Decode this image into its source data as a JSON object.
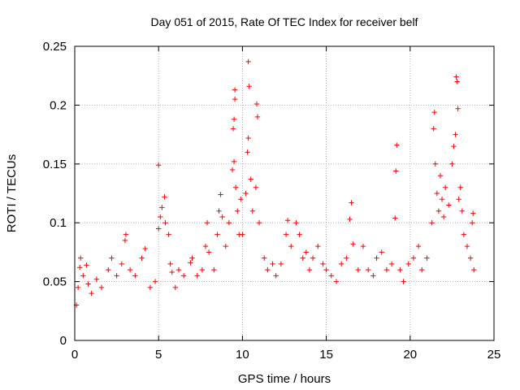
{
  "chart_data": {
    "type": "scatter",
    "title": "Day 051 of 2015, Rate Of TEC Index for receiver belf",
    "xlabel": "GPS time / hours",
    "ylabel": "ROTI / TECUs",
    "xlim": [
      0,
      25
    ],
    "ylim": [
      0,
      0.25
    ],
    "x_ticks": [
      0,
      5,
      10,
      15,
      20,
      25
    ],
    "x_tick_labels": [
      "0",
      "5",
      "10",
      "15",
      "20",
      "25"
    ],
    "y_ticks": [
      0,
      0.05,
      0.1,
      0.15,
      0.2,
      0.25
    ],
    "y_tick_labels": [
      "0",
      "0.05",
      "0.1",
      "0.15",
      "0.2",
      "0.25"
    ],
    "grid": true,
    "marker": "plus",
    "color": "#ff0000",
    "series": [
      {
        "points": [
          [
            0.1,
            0.03
          ],
          [
            0.2,
            0.045
          ],
          [
            0.3,
            0.062
          ],
          [
            0.35,
            0.07
          ],
          [
            0.5,
            0.055
          ],
          [
            0.7,
            0.064
          ],
          [
            0.8,
            0.048
          ],
          [
            1.0,
            0.04
          ],
          [
            1.3,
            0.052
          ],
          [
            1.6,
            0.045
          ],
          [
            2.0,
            0.06
          ],
          [
            2.2,
            0.07
          ],
          [
            2.5,
            0.055
          ],
          [
            2.8,
            0.065
          ],
          [
            3.0,
            0.085
          ],
          [
            3.05,
            0.09
          ],
          [
            3.3,
            0.06
          ],
          [
            3.6,
            0.055
          ],
          [
            4.0,
            0.07
          ],
          [
            4.2,
            0.078
          ],
          [
            4.5,
            0.045
          ],
          [
            4.8,
            0.05
          ],
          [
            5.0,
            0.149
          ],
          [
            5.0,
            0.095
          ],
          [
            5.1,
            0.105
          ],
          [
            5.2,
            0.113
          ],
          [
            5.35,
            0.122
          ],
          [
            5.4,
            0.1
          ],
          [
            5.6,
            0.09
          ],
          [
            5.7,
            0.065
          ],
          [
            5.8,
            0.058
          ],
          [
            6.0,
            0.045
          ],
          [
            6.2,
            0.06
          ],
          [
            6.5,
            0.055
          ],
          [
            6.9,
            0.066
          ],
          [
            7.0,
            0.07
          ],
          [
            7.3,
            0.055
          ],
          [
            7.6,
            0.06
          ],
          [
            7.8,
            0.08
          ],
          [
            7.9,
            0.1
          ],
          [
            8.0,
            0.075
          ],
          [
            8.3,
            0.06
          ],
          [
            8.5,
            0.09
          ],
          [
            8.6,
            0.11
          ],
          [
            8.7,
            0.124
          ],
          [
            8.8,
            0.105
          ],
          [
            9.0,
            0.08
          ],
          [
            9.2,
            0.1
          ],
          [
            9.4,
            0.145
          ],
          [
            9.5,
            0.152
          ],
          [
            9.45,
            0.18
          ],
          [
            9.5,
            0.188
          ],
          [
            9.55,
            0.205
          ],
          [
            9.55,
            0.213
          ],
          [
            9.6,
            0.13
          ],
          [
            9.7,
            0.11
          ],
          [
            9.8,
            0.09
          ],
          [
            9.9,
            0.12
          ],
          [
            10.0,
            0.09
          ],
          [
            10.2,
            0.125
          ],
          [
            10.3,
            0.16
          ],
          [
            10.35,
            0.172
          ],
          [
            10.4,
            0.216
          ],
          [
            10.35,
            0.237
          ],
          [
            10.5,
            0.137
          ],
          [
            10.6,
            0.11
          ],
          [
            10.8,
            0.13
          ],
          [
            10.85,
            0.201
          ],
          [
            10.9,
            0.19
          ],
          [
            11.0,
            0.1
          ],
          [
            11.3,
            0.07
          ],
          [
            11.5,
            0.06
          ],
          [
            11.8,
            0.065
          ],
          [
            12.0,
            0.055
          ],
          [
            12.3,
            0.065
          ],
          [
            12.6,
            0.09
          ],
          [
            12.7,
            0.102
          ],
          [
            12.9,
            0.08
          ],
          [
            13.2,
            0.1
          ],
          [
            13.4,
            0.09
          ],
          [
            13.6,
            0.07
          ],
          [
            13.8,
            0.075
          ],
          [
            14.0,
            0.06
          ],
          [
            14.2,
            0.07
          ],
          [
            14.5,
            0.08
          ],
          [
            14.8,
            0.065
          ],
          [
            15.0,
            0.06
          ],
          [
            15.3,
            0.055
          ],
          [
            15.6,
            0.05
          ],
          [
            15.9,
            0.065
          ],
          [
            16.2,
            0.07
          ],
          [
            16.4,
            0.103
          ],
          [
            16.5,
            0.117
          ],
          [
            16.6,
            0.082
          ],
          [
            16.9,
            0.06
          ],
          [
            17.2,
            0.08
          ],
          [
            17.5,
            0.06
          ],
          [
            17.8,
            0.055
          ],
          [
            18.0,
            0.07
          ],
          [
            18.3,
            0.075
          ],
          [
            18.6,
            0.06
          ],
          [
            18.9,
            0.065
          ],
          [
            19.1,
            0.104
          ],
          [
            19.15,
            0.144
          ],
          [
            19.2,
            0.166
          ],
          [
            19.4,
            0.06
          ],
          [
            19.6,
            0.05
          ],
          [
            19.9,
            0.065
          ],
          [
            20.2,
            0.07
          ],
          [
            20.5,
            0.08
          ],
          [
            20.7,
            0.06
          ],
          [
            21.0,
            0.07
          ],
          [
            21.3,
            0.1
          ],
          [
            21.4,
            0.18
          ],
          [
            21.45,
            0.194
          ],
          [
            21.5,
            0.15
          ],
          [
            21.6,
            0.125
          ],
          [
            21.7,
            0.11
          ],
          [
            21.8,
            0.14
          ],
          [
            21.9,
            0.12
          ],
          [
            22.0,
            0.105
          ],
          [
            22.1,
            0.13
          ],
          [
            22.3,
            0.115
          ],
          [
            22.5,
            0.15
          ],
          [
            22.6,
            0.165
          ],
          [
            22.7,
            0.175
          ],
          [
            22.75,
            0.224
          ],
          [
            22.8,
            0.22
          ],
          [
            22.85,
            0.197
          ],
          [
            22.9,
            0.12
          ],
          [
            23.0,
            0.13
          ],
          [
            23.1,
            0.11
          ],
          [
            23.2,
            0.09
          ],
          [
            23.4,
            0.08
          ],
          [
            23.6,
            0.07
          ],
          [
            23.7,
            0.1
          ],
          [
            23.75,
            0.108
          ],
          [
            23.8,
            0.06
          ]
        ]
      }
    ]
  }
}
